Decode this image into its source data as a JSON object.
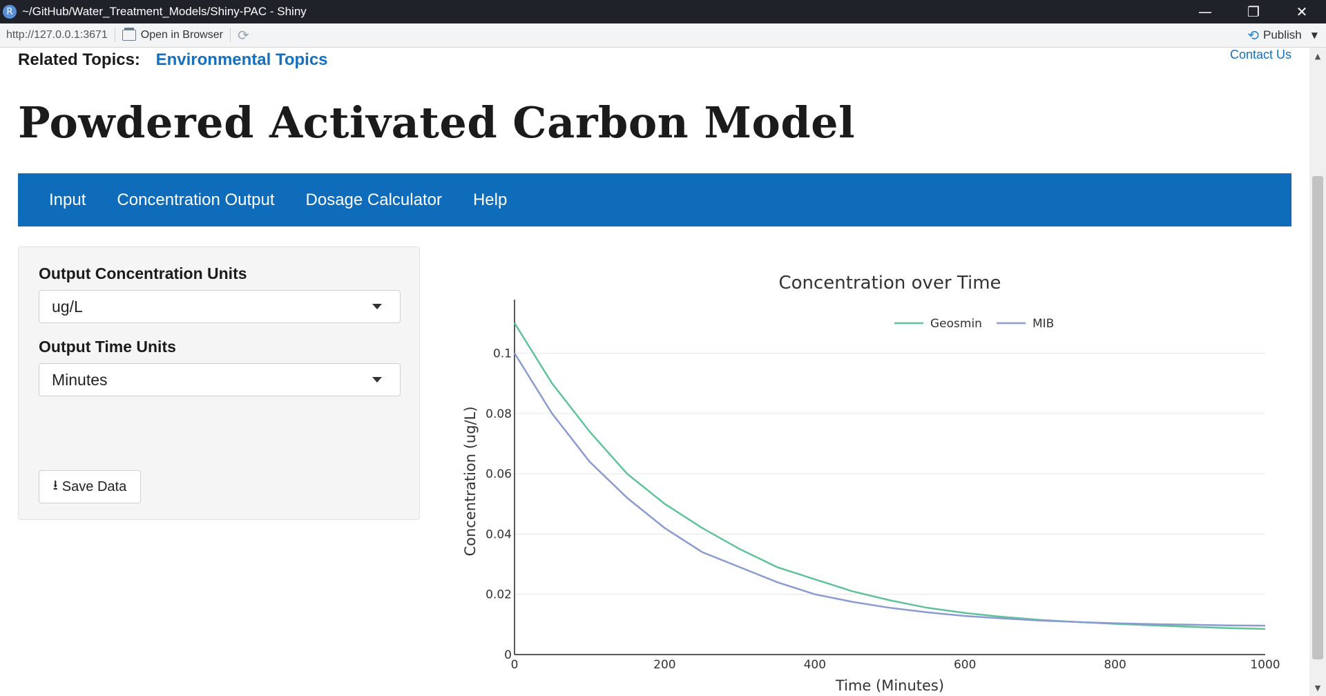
{
  "window": {
    "app_icon": "R",
    "title": "~/GitHub/Water_Treatment_Models/Shiny-PAC - Shiny",
    "minimize": "—",
    "restore": "❐",
    "close": "✕"
  },
  "toolbar": {
    "url": "http://127.0.0.1:3671",
    "open_in_browser": "Open in Browser",
    "refresh_icon": "⟳",
    "publish": "Publish",
    "publish_icon": "⟲"
  },
  "header": {
    "related_label": "Related Topics:",
    "related_link": "Environmental Topics",
    "contact": "Contact Us",
    "title": "Powdered Activated Carbon Model"
  },
  "nav": {
    "tabs": [
      "Input",
      "Concentration Output",
      "Dosage Calculator",
      "Help"
    ]
  },
  "sidebar": {
    "conc_units_label": "Output Concentration Units",
    "conc_units_value": "ug/L",
    "time_units_label": "Output Time Units",
    "time_units_value": "Minutes",
    "save_label": "Save Data",
    "save_icon": "⭳"
  },
  "scrollbar": {
    "up": "▲",
    "down": "▼"
  },
  "chart_data": {
    "type": "line",
    "title": "Concentration over Time",
    "xlabel": "Time (Minutes)",
    "ylabel": "Concentration (ug/L)",
    "xlim": [
      0,
      1000
    ],
    "ylim": [
      0,
      0.115
    ],
    "xticks": [
      0,
      200,
      400,
      600,
      800,
      1000
    ],
    "yticks": [
      0,
      0.02,
      0.04,
      0.06,
      0.08,
      0.1
    ],
    "ytick_labels": [
      "0",
      "0.02",
      "0.04",
      "0.06",
      "0.08",
      "0.1"
    ],
    "grid": true,
    "legend": "top-center, horizontal",
    "x": [
      0,
      50,
      100,
      150,
      200,
      250,
      300,
      350,
      400,
      450,
      500,
      550,
      600,
      650,
      700,
      750,
      800,
      850,
      900,
      950,
      1000
    ],
    "series": [
      {
        "name": "Geosmin",
        "color": "#5fc29a",
        "values": [
          0.11,
          0.09,
          0.074,
          0.06,
          0.05,
          0.042,
          0.035,
          0.029,
          0.025,
          0.021,
          0.018,
          0.0155,
          0.0138,
          0.0125,
          0.0115,
          0.0108,
          0.0102,
          0.0097,
          0.0092,
          0.0088,
          0.0085
        ]
      },
      {
        "name": "MIB",
        "color": "#8a9bd0",
        "values": [
          0.1,
          0.08,
          0.064,
          0.052,
          0.042,
          0.034,
          0.029,
          0.024,
          0.02,
          0.0175,
          0.0155,
          0.014,
          0.0128,
          0.012,
          0.0113,
          0.0108,
          0.0104,
          0.0101,
          0.0099,
          0.0097,
          0.0096
        ]
      }
    ]
  }
}
